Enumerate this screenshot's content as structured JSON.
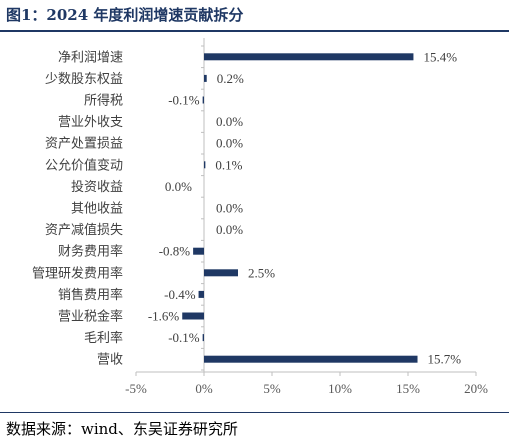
{
  "figure": {
    "title": "图1：2024 年度利润增速贡献拆分",
    "source": "数据来源：wind、东吴证券研究所"
  },
  "colors": {
    "bar": "#1f3864",
    "axis": "#bfbfbf",
    "rule": "#1f3864"
  },
  "chart_data": {
    "type": "bar",
    "orientation": "horizontal",
    "categories": [
      "净利润增速",
      "少数股东权益",
      "所得税",
      "营业外收支",
      "资产处置损益",
      "公允价值变动",
      "投资收益",
      "其他收益",
      "资产减值损失",
      "财务费用率",
      "管理研发费用率",
      "销售费用率",
      "营业税金率",
      "毛利率",
      "营收"
    ],
    "values": [
      15.4,
      0.2,
      -0.1,
      0.0,
      0.0,
      0.1,
      0.0,
      0.0,
      0.0,
      -0.8,
      2.5,
      -0.4,
      -1.6,
      -0.1,
      15.7
    ],
    "value_labels": [
      "15.4%",
      "0.2%",
      "-0.1%",
      "0.0%",
      "0.0%",
      "0.1%",
      "0.0%",
      "0.0%",
      "0.0%",
      "-0.8%",
      "2.5%",
      "-0.4%",
      "-1.6%",
      "-0.1%",
      "15.7%"
    ],
    "xlim": [
      -5,
      20
    ],
    "xticks": [
      -5,
      0,
      5,
      10,
      15,
      20
    ],
    "xtick_labels": [
      "-5%",
      "0%",
      "5%",
      "10%",
      "15%",
      "20%"
    ],
    "grid": false,
    "legend": "none"
  }
}
